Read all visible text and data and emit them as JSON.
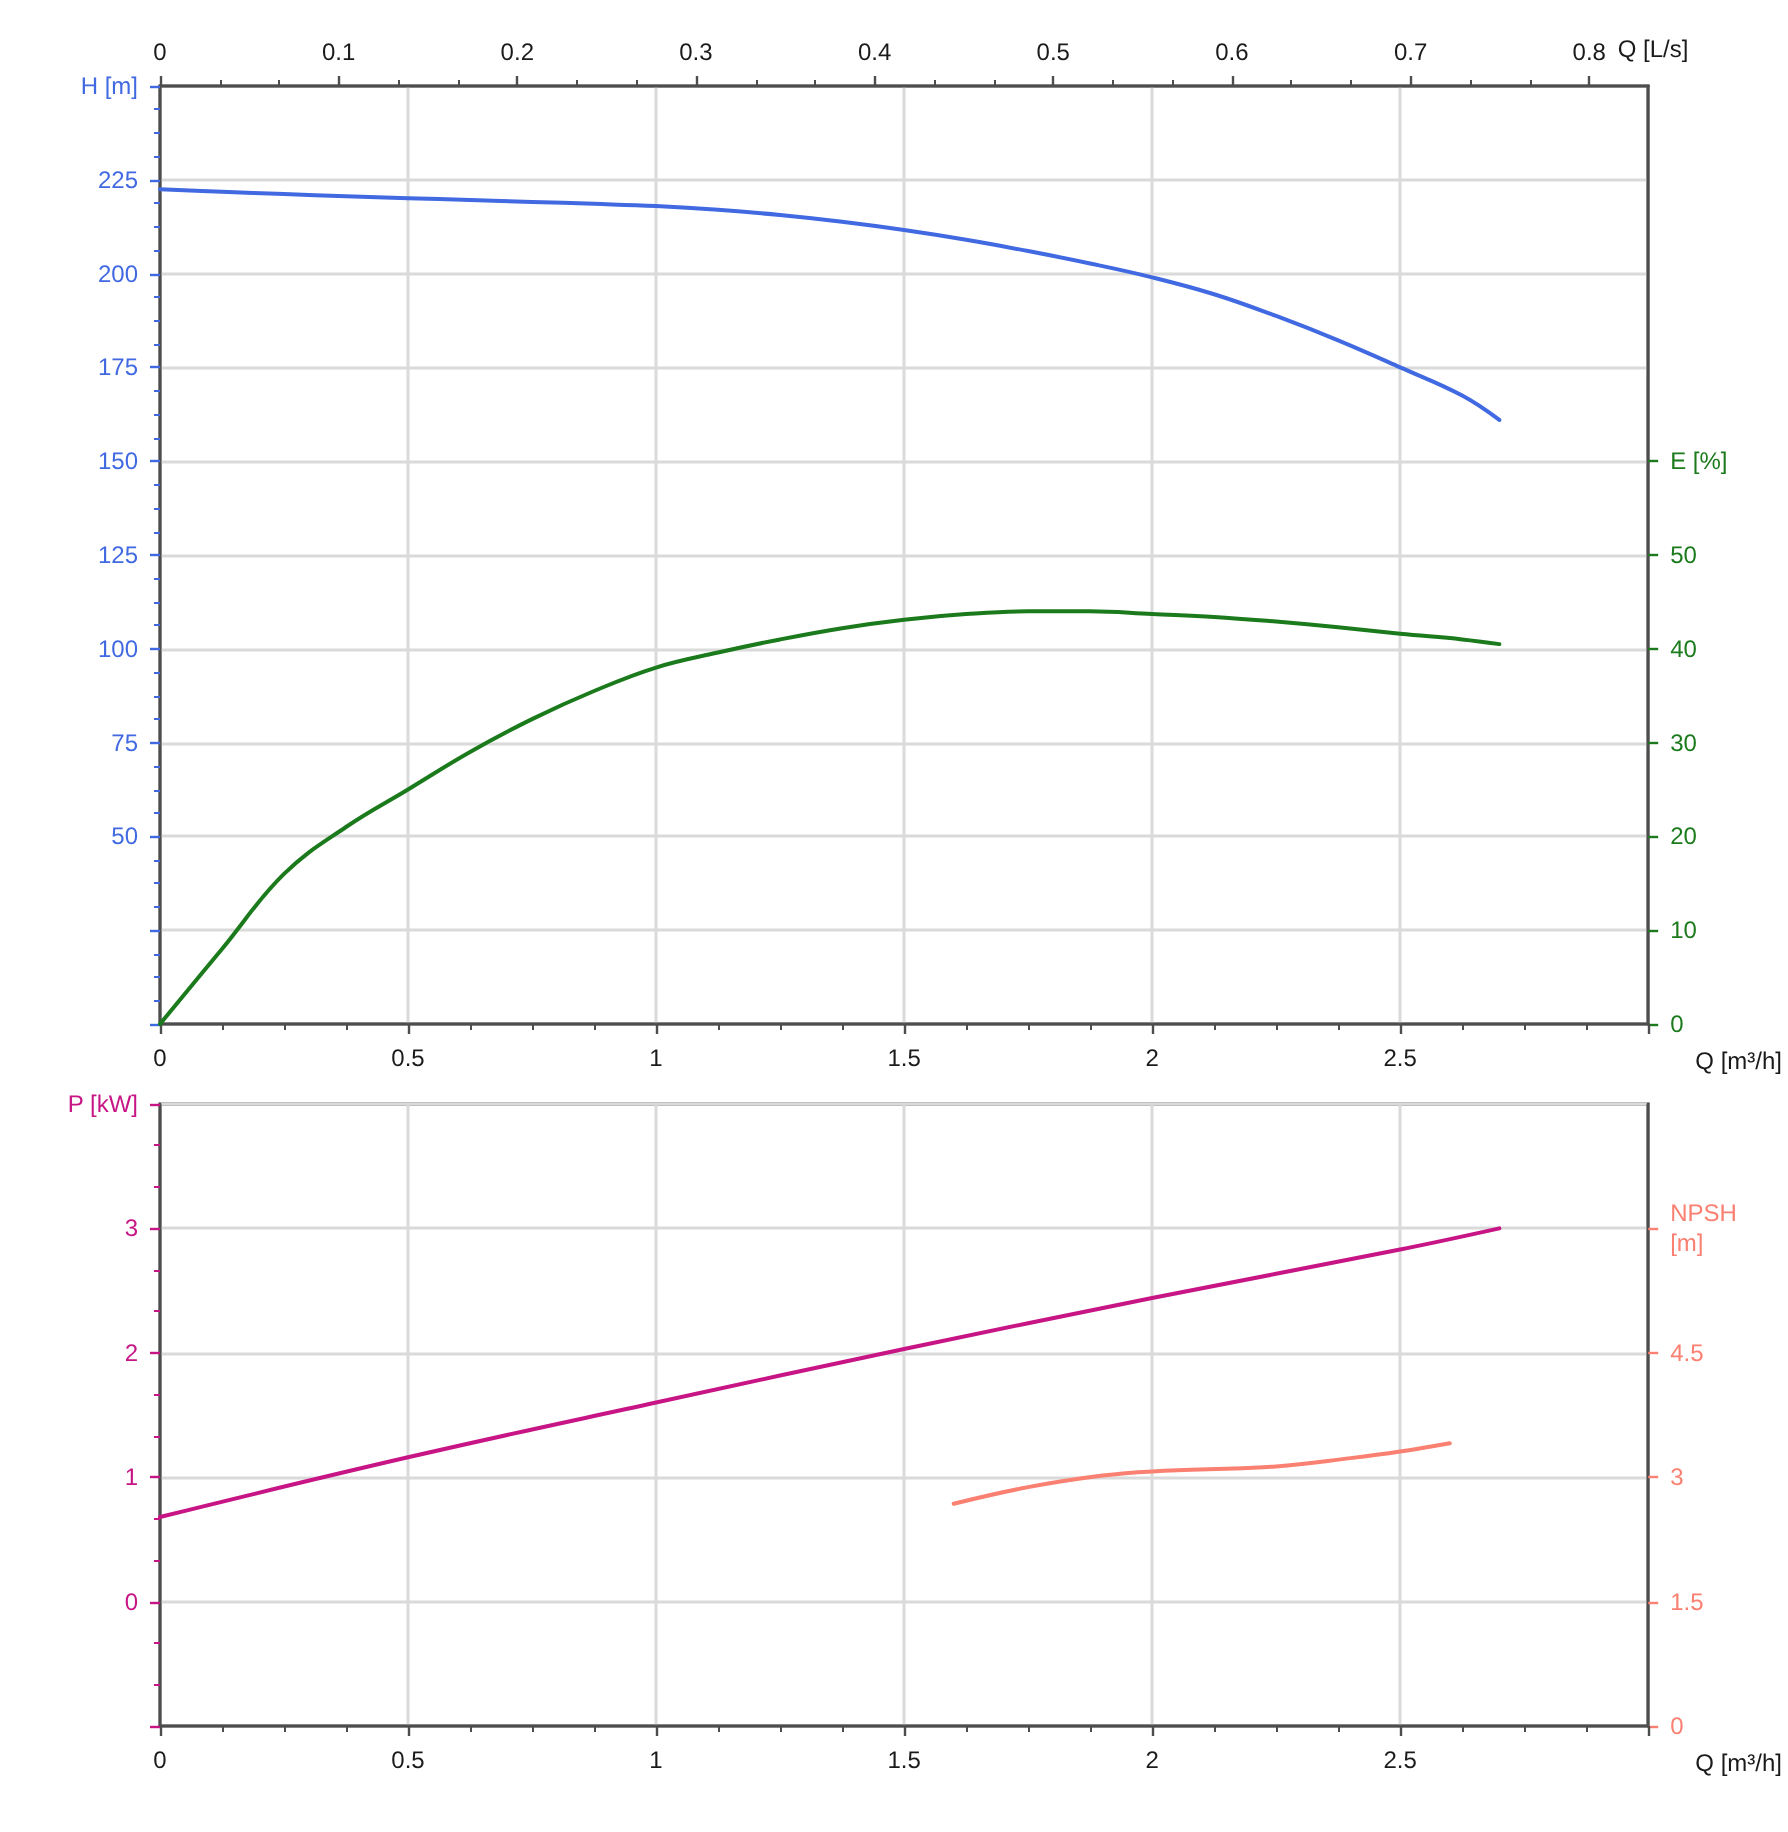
{
  "chart_data": [
    {
      "type": "line",
      "xlabel": "Q [m³/h]",
      "ylabel": "H [m]",
      "y2label": "E [%]",
      "x2label": "Q [L/s]",
      "xlim": [
        0,
        3
      ],
      "xticks": [
        0,
        0.5,
        1,
        1.5,
        2,
        2.5,
        {
          "value": 3,
          "label": null
        }
      ],
      "x2lim": [
        0,
        0.833
      ],
      "x2ticks": [
        0,
        0.1,
        0.2,
        0.3,
        0.4,
        0.5,
        0.6,
        0.7,
        0.8
      ],
      "ylim": [
        0,
        250
      ],
      "yticks": [
        {
          "value": 0,
          "label": null
        },
        {
          "value": 25,
          "label": null
        },
        50,
        75,
        100,
        125,
        150,
        175,
        200,
        225,
        {
          "value": 250,
          "label": null
        }
      ],
      "y2lim": [
        0,
        100
      ],
      "y2ticks": [
        0,
        10,
        20,
        30,
        40,
        50,
        {
          "value": 60,
          "label": null
        }
      ],
      "grid": true,
      "series": [
        {
          "color": "#4169e1",
          "x": [
            0,
            0.125,
            0.25,
            0.375,
            0.5,
            0.625,
            0.75,
            0.875,
            1,
            1.125,
            1.25,
            1.375,
            1.5,
            1.625,
            1.75,
            1.875,
            2,
            2.125,
            2.25,
            2.375,
            2.5,
            2.625,
            2.7
          ],
          "values": [
            222.5,
            221.8,
            221.2,
            220.6,
            220.1,
            219.6,
            219.1,
            218.6,
            218,
            217,
            215.6,
            213.8,
            211.6,
            209,
            206,
            202.7,
            199,
            194.5,
            188.7,
            182.2,
            175,
            167.5,
            161
          ]
        },
        {
          "color": "#1b7a1b",
          "axis": "y2",
          "x": [
            0,
            0.125,
            0.25,
            0.375,
            0.5,
            0.625,
            0.75,
            0.875,
            1,
            1.125,
            1.25,
            1.375,
            1.5,
            1.625,
            1.75,
            1.875,
            2,
            2.125,
            2.25,
            2.375,
            2.5,
            2.625,
            2.7
          ],
          "values": [
            0,
            8,
            16,
            21,
            25,
            29,
            32.5,
            35.5,
            38,
            39.6,
            41,
            42.2,
            43.1,
            43.7,
            44,
            44,
            43.7,
            43.4,
            42.9,
            42.3,
            41.6,
            41,
            40.5
          ]
        }
      ]
    },
    {
      "type": "line",
      "xlabel": "Q [m³/h]",
      "ylabel": "P [kW]",
      "y2label": "NPSH [m]",
      "xlim": [
        0,
        3
      ],
      "xticks": [
        0,
        0.5,
        1,
        1.5,
        2,
        2.5,
        {
          "value": 3,
          "label": null
        }
      ],
      "ylim": [
        -1,
        4
      ],
      "yticks": [
        {
          "value": -1,
          "label": null
        },
        0,
        1,
        2,
        3,
        {
          "value": 4,
          "label": null
        }
      ],
      "y2lim": [
        0,
        7.5
      ],
      "y2ticks": [
        0,
        1.5,
        3,
        4.5,
        {
          "value": 6,
          "label": null
        }
      ],
      "grid": true,
      "series": [
        {
          "color": "#c71585",
          "x": [
            0,
            0.5,
            1,
            1.5,
            2,
            2.5,
            2.7
          ],
          "values": [
            0.68,
            1.16,
            1.6,
            2.03,
            2.44,
            2.83,
            3
          ]
        },
        {
          "color": "#fa8072",
          "axis": "y2",
          "x": [
            1.6,
            1.75,
            1.9,
            2,
            2.25,
            2.4,
            2.5,
            2.6
          ],
          "values": [
            2.68,
            2.88,
            3.02,
            3.07,
            3.13,
            3.23,
            3.31,
            3.41
          ]
        }
      ]
    }
  ]
}
